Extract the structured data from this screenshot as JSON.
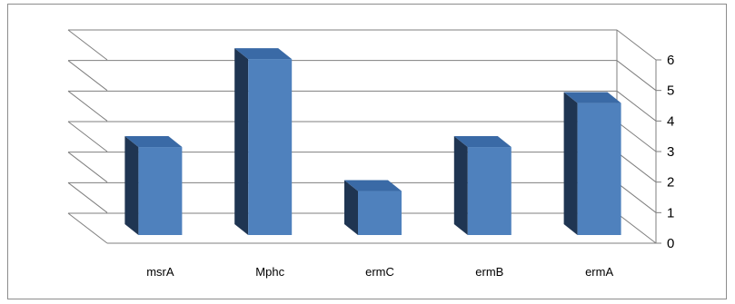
{
  "chart_data": {
    "type": "bar",
    "style": "3d-clustered-column",
    "categories": [
      "msrA",
      "Mphc",
      "ermC",
      "ermB",
      "ermA"
    ],
    "values": [
      3,
      6,
      1.5,
      3,
      4.5
    ],
    "ylim": [
      0,
      6
    ],
    "yticks": [
      "0",
      "1",
      "2",
      "3",
      "4",
      "5",
      "6"
    ],
    "yaxis_position": "right",
    "grid": true,
    "legend": "none",
    "colors": {
      "front": "#4f81bd",
      "top": "#3a6aa6",
      "side": "#1f3552",
      "gridline": "#7f7f7f"
    }
  }
}
